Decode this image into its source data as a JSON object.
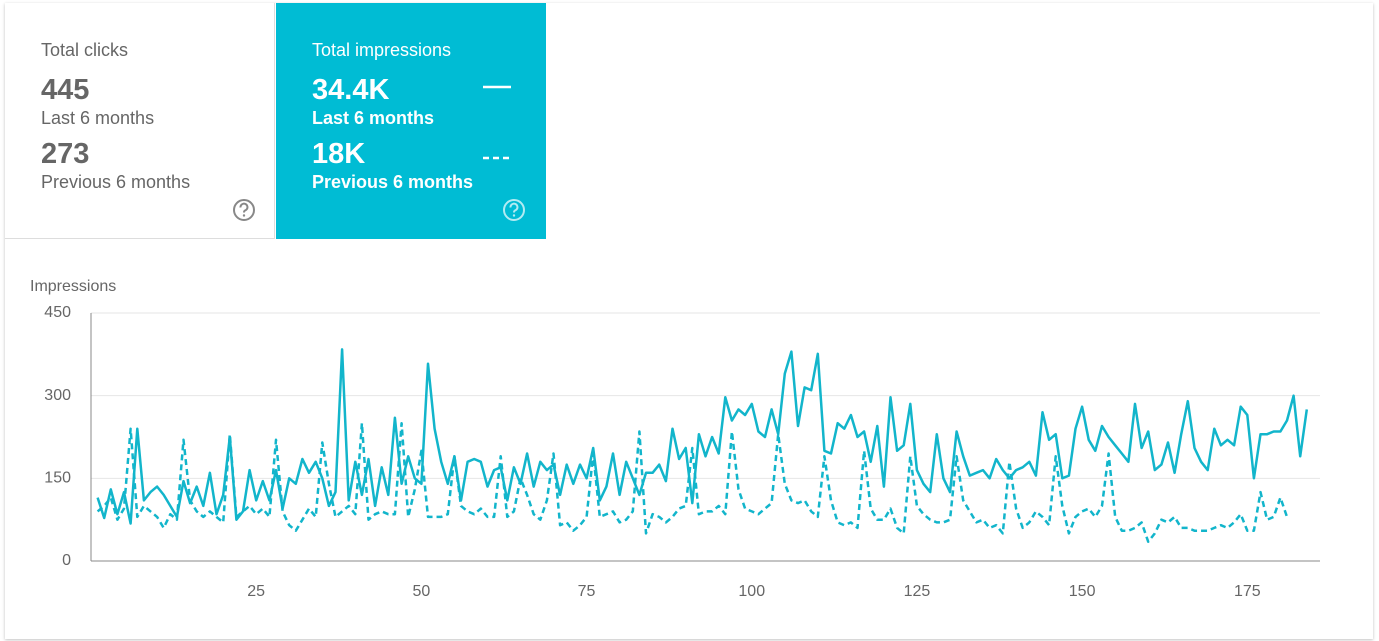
{
  "cards": [
    {
      "title": "Total clicks",
      "current_value": "445",
      "current_label": "Last 6 months",
      "previous_value": "273",
      "previous_label": "Previous 6 months"
    },
    {
      "title": "Total impressions",
      "current_value": "34.4K",
      "current_label": "Last 6 months",
      "previous_value": "18K",
      "previous_label": "Previous 6 months"
    }
  ],
  "chart_data": {
    "type": "line",
    "y_axis_title": "Impressions",
    "xlim": [
      0,
      186
    ],
    "xticks": [
      25,
      50,
      75,
      100,
      125,
      150,
      175
    ],
    "ylim": [
      0,
      450
    ],
    "yticks": [
      0,
      150,
      300,
      450
    ],
    "grid": true,
    "x": [
      1,
      2,
      3,
      4,
      5,
      6,
      7,
      8,
      9,
      10,
      11,
      12,
      13,
      14,
      15,
      16,
      17,
      18,
      19,
      20,
      21,
      22,
      23,
      24,
      25,
      26,
      27,
      28,
      29,
      30,
      31,
      32,
      33,
      34,
      35,
      36,
      37,
      38,
      39,
      40,
      41,
      42,
      43,
      44,
      45,
      46,
      47,
      48,
      49,
      50,
      51,
      52,
      53,
      54,
      55,
      56,
      57,
      58,
      59,
      60,
      61,
      62,
      63,
      64,
      65,
      66,
      67,
      68,
      69,
      70,
      71,
      72,
      73,
      74,
      75,
      76,
      77,
      78,
      79,
      80,
      81,
      82,
      83,
      84,
      85,
      86,
      87,
      88,
      89,
      90,
      91,
      92,
      93,
      94,
      95,
      96,
      97,
      98,
      99,
      100,
      101,
      102,
      103,
      104,
      105,
      106,
      107,
      108,
      109,
      110,
      111,
      112,
      113,
      114,
      115,
      116,
      117,
      118,
      119,
      120,
      121,
      122,
      123,
      124,
      125,
      126,
      127,
      128,
      129,
      130,
      131,
      132,
      133,
      134,
      135,
      136,
      137,
      138,
      139,
      140,
      141,
      142,
      143,
      144,
      145,
      146,
      147,
      148,
      149,
      150,
      151,
      152,
      153,
      154,
      155,
      156,
      157,
      158,
      159,
      160,
      161,
      162,
      163,
      164,
      165,
      166,
      167,
      168,
      169,
      170,
      171,
      172,
      173,
      174,
      175,
      176,
      177,
      178,
      179,
      180,
      181,
      182,
      183,
      184
    ],
    "series": [
      {
        "color": "#12b5cb",
        "line_style": "solid",
        "values": [
          115,
          78,
          130,
          85,
          125,
          68,
          240,
          110,
          125,
          135,
          120,
          100,
          80,
          145,
          105,
          135,
          100,
          160,
          85,
          120,
          225,
          75,
          90,
          165,
          110,
          145,
          110,
          165,
          95,
          150,
          140,
          185,
          160,
          180,
          150,
          100,
          125,
          384,
          110,
          180,
          120,
          185,
          100,
          170,
          120,
          260,
          140,
          190,
          150,
          140,
          358,
          240,
          180,
          140,
          190,
          110,
          180,
          185,
          180,
          135,
          165,
          170,
          110,
          170,
          140,
          195,
          135,
          180,
          165,
          175,
          120,
          175,
          140,
          175,
          150,
          205,
          110,
          135,
          195,
          120,
          180,
          150,
          120,
          160,
          160,
          175,
          145,
          240,
          185,
          205,
          105,
          230,
          190,
          225,
          195,
          297,
          255,
          275,
          265,
          285,
          235,
          225,
          275,
          230,
          340,
          380,
          245,
          315,
          310,
          376,
          200,
          195,
          250,
          240,
          265,
          225,
          235,
          180,
          245,
          135,
          297,
          200,
          210,
          285,
          165,
          140,
          125,
          230,
          150,
          125,
          235,
          190,
          155,
          160,
          165,
          150,
          185,
          165,
          150,
          165,
          170,
          180,
          155,
          270,
          220,
          230,
          150,
          155,
          240,
          280,
          220,
          200,
          245,
          225,
          210,
          195,
          180,
          285,
          205,
          235,
          165,
          175,
          215,
          160,
          230,
          290,
          205,
          180,
          165,
          240,
          210,
          220,
          210,
          280,
          265,
          150,
          230,
          230,
          235,
          235,
          255,
          300,
          190,
          275
        ]
      },
      {
        "color": "#12b5cb",
        "line_style": "dashed",
        "values": [
          90,
          100,
          115,
          75,
          95,
          240,
          80,
          100,
          90,
          80,
          60,
          85,
          75,
          220,
          110,
          90,
          80,
          90,
          80,
          70,
          230,
          80,
          90,
          100,
          85,
          95,
          80,
          220,
          90,
          65,
          55,
          75,
          95,
          80,
          215,
          140,
          80,
          90,
          100,
          85,
          250,
          75,
          85,
          90,
          85,
          85,
          250,
          80,
          130,
          200,
          80,
          80,
          80,
          85,
          190,
          100,
          90,
          85,
          95,
          80,
          80,
          190,
          80,
          90,
          150,
          120,
          85,
          75,
          110,
          195,
          65,
          70,
          55,
          65,
          80,
          195,
          80,
          85,
          90,
          70,
          75,
          90,
          235,
          50,
          85,
          80,
          70,
          80,
          95,
          100,
          205,
          85,
          90,
          90,
          100,
          85,
          235,
          130,
          95,
          90,
          85,
          95,
          105,
          230,
          140,
          110,
          105,
          110,
          90,
          80,
          190,
          110,
          70,
          65,
          70,
          60,
          200,
          95,
          75,
          75,
          95,
          60,
          50,
          190,
          100,
          85,
          75,
          70,
          70,
          75,
          190,
          110,
          90,
          70,
          75,
          60,
          65,
          50,
          180,
          95,
          60,
          70,
          90,
          80,
          65,
          190,
          100,
          50,
          80,
          90,
          95,
          80,
          100,
          195,
          80,
          55,
          55,
          60,
          70,
          35,
          50,
          75,
          70,
          80,
          60,
          60,
          55,
          55,
          55,
          60,
          65,
          60,
          70,
          85,
          55,
          55,
          125,
          75,
          80,
          115,
          80,
          null,
          null,
          null
        ]
      }
    ]
  }
}
